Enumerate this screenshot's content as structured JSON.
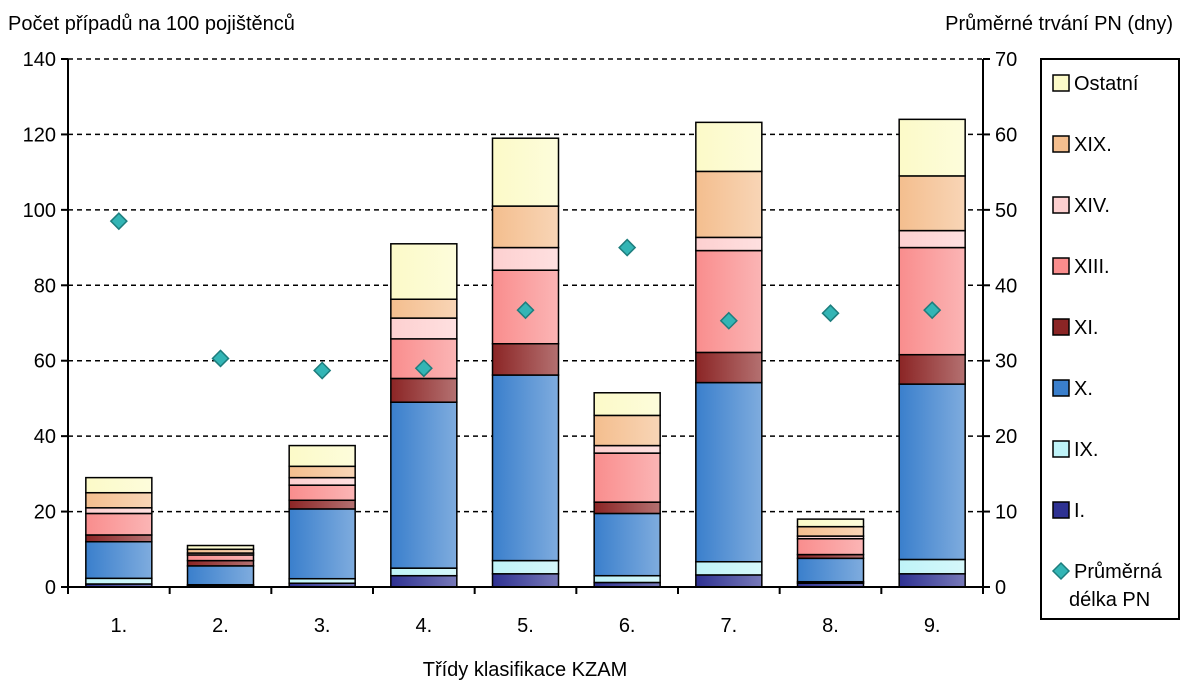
{
  "chart_data": {
    "type": "bar",
    "stacked": true,
    "xlabel": "Třídy klasifikace KZAM",
    "ylabel": "Počet případů na 100 pojištěnců",
    "y2label": "Průměrné trvání PN (dny)",
    "ylim": [
      0,
      140
    ],
    "y2lim": [
      0,
      70
    ],
    "yticks": [
      0,
      20,
      40,
      60,
      80,
      100,
      120,
      140
    ],
    "y2ticks": [
      0,
      10,
      20,
      30,
      40,
      50,
      60,
      70
    ],
    "grid": "horizontal dashed",
    "legend_position": "right",
    "categories": [
      "1.",
      "2.",
      "3.",
      "4.",
      "5.",
      "6.",
      "7.",
      "8.",
      "9."
    ],
    "series": [
      {
        "name": "I.",
        "color": "#2e3192",
        "values": [
          0.8,
          0.3,
          1.0,
          3.0,
          3.5,
          1.2,
          3.2,
          1.0,
          3.5
        ]
      },
      {
        "name": "IX.",
        "color": "#bff3f8",
        "values": [
          1.5,
          0.3,
          1.2,
          2.0,
          3.5,
          1.8,
          3.5,
          0.4,
          3.8
        ]
      },
      {
        "name": "X.",
        "color": "#3a7fcc",
        "values": [
          9.7,
          5.0,
          18.5,
          44.0,
          49.2,
          16.5,
          47.5,
          6.2,
          46.5
        ]
      },
      {
        "name": "XI.",
        "color": "#8b2525",
        "values": [
          1.8,
          1.4,
          2.3,
          6.3,
          8.3,
          3.0,
          8.0,
          1.0,
          7.8
        ]
      },
      {
        "name": "XIII.",
        "color": "#f98d8d",
        "values": [
          5.7,
          1.5,
          4.0,
          10.5,
          19.5,
          13.0,
          27.0,
          4.2,
          28.4
        ]
      },
      {
        "name": "XIV.",
        "color": "#fdd0d0",
        "values": [
          1.5,
          0.5,
          2.0,
          5.5,
          6.0,
          2.0,
          3.5,
          0.7,
          4.5
        ]
      },
      {
        "name": "XIX.",
        "color": "#f4be8e",
        "values": [
          4.0,
          1.0,
          3.0,
          5.0,
          11.0,
          8.0,
          17.5,
          2.5,
          14.5
        ]
      },
      {
        "name": "Ostatní",
        "color": "#fcfac8",
        "values": [
          4.0,
          1.0,
          5.5,
          14.7,
          18.0,
          6.0,
          13.0,
          2.0,
          15.0
        ]
      }
    ],
    "scatter_series": {
      "name": "Průměrná délka PN",
      "color": "#33b5b5",
      "axis": "secondary",
      "values": [
        48.5,
        30.3,
        28.7,
        29.0,
        36.7,
        45.0,
        35.3,
        36.3,
        36.7
      ]
    }
  }
}
